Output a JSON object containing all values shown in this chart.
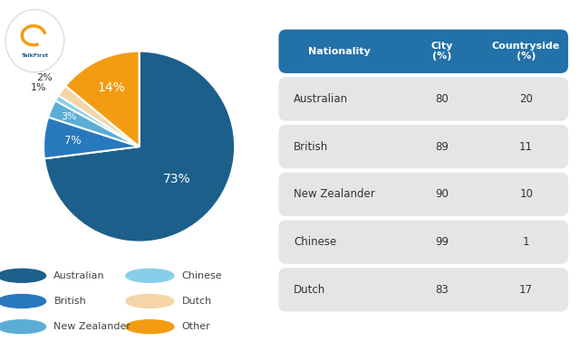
{
  "pie_labels": [
    "Australian",
    "British",
    "New Zealander",
    "Chinese",
    "Dutch",
    "Other"
  ],
  "pie_values": [
    73,
    7,
    3,
    1,
    2,
    14
  ],
  "pie_colors": [
    "#1C5F8A",
    "#2878BE",
    "#5BADD6",
    "#87CEEB",
    "#F5D5A8",
    "#F39C12"
  ],
  "pie_pct_labels": [
    "73%",
    "7%",
    "3%",
    "1%",
    "2%",
    "14%"
  ],
  "legend_order": [
    "Australian",
    "Chinese",
    "British",
    "Dutch",
    "New Zealander",
    "Other"
  ],
  "legend_colors_map": {
    "Australian": "#1C5F8A",
    "Chinese": "#87CEEB",
    "British": "#2878BE",
    "Dutch": "#F5D5A8",
    "New Zealander": "#5BADD6",
    "Other": "#F39C12"
  },
  "table_headers": [
    "Nationality",
    "City\n(%)",
    "Countryside\n(%)"
  ],
  "table_rows": [
    [
      "Australian",
      "80",
      "20"
    ],
    [
      "British",
      "89",
      "11"
    ],
    [
      "New Zealander",
      "90",
      "10"
    ],
    [
      "Chinese",
      "99",
      "1"
    ],
    [
      "Dutch",
      "83",
      "17"
    ]
  ],
  "header_bg_color": "#2271A8",
  "header_text_color": "#FFFFFF",
  "row_bg_color": "#E5E5E5",
  "row_text_color": "#333333",
  "bg_color": "#FFFFFF"
}
